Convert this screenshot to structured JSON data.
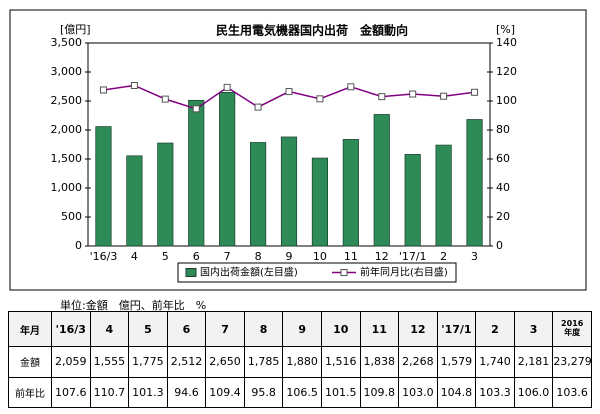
{
  "chart_data": {
    "type": "bar-line",
    "title": "民生用電気機器国内出荷　金額動向",
    "y_label": "[億円]",
    "y2_label": "[%]",
    "categories": [
      "'16/3",
      "4",
      "5",
      "6",
      "7",
      "8",
      "9",
      "10",
      "11",
      "12",
      "'17/1",
      "2",
      "3"
    ],
    "series": [
      {
        "name": "国内出荷金額(左目盛)",
        "type": "bar",
        "color": "#2e8b57",
        "values": [
          2059,
          1555,
          1775,
          2512,
          2650,
          1785,
          1880,
          1516,
          1838,
          2268,
          1579,
          1740,
          2181
        ]
      },
      {
        "name": "前年同月比(右目盛)",
        "type": "line",
        "axis": "y2",
        "color": "#800080",
        "values": [
          107.6,
          110.7,
          101.3,
          94.6,
          109.4,
          95.8,
          106.5,
          101.5,
          109.8,
          103.0,
          104.8,
          103.3,
          106.0
        ]
      }
    ],
    "ylim": [
      0,
      3500
    ],
    "yticks": [
      0,
      500,
      {
        "value": 1000,
        "label": "1,000"
      },
      {
        "value": 1500,
        "label": "1,500"
      },
      {
        "value": 2000,
        "label": "2,000"
      },
      {
        "value": 2500,
        "label": "2,500"
      },
      {
        "value": 3000,
        "label": "3,000"
      },
      {
        "value": 3500,
        "label": "3,500"
      }
    ],
    "y2lim": [
      0,
      140
    ],
    "y2ticks": [
      0,
      20,
      40,
      60,
      80,
      100,
      120,
      140
    ],
    "grid": false
  },
  "note": "単位:金額　億円、前年比　%",
  "table": {
    "header": [
      "年月",
      "'16/3",
      "4",
      "5",
      "6",
      "7",
      "8",
      "9",
      "10",
      "11",
      "12",
      "'17/1",
      "2",
      "3",
      "2016\n年度"
    ],
    "rows": [
      [
        "金額",
        "2,059",
        "1,555",
        "1,775",
        "2,512",
        "2,650",
        "1,785",
        "1,880",
        "1,516",
        "1,838",
        "2,268",
        "1,579",
        "1,740",
        "2,181",
        "23,279"
      ],
      [
        "前年比",
        "107.6",
        "110.7",
        "101.3",
        "94.6",
        "109.4",
        "95.8",
        "106.5",
        "101.5",
        "109.8",
        "103.0",
        "104.8",
        "103.3",
        "106.0",
        "103.6"
      ]
    ]
  }
}
